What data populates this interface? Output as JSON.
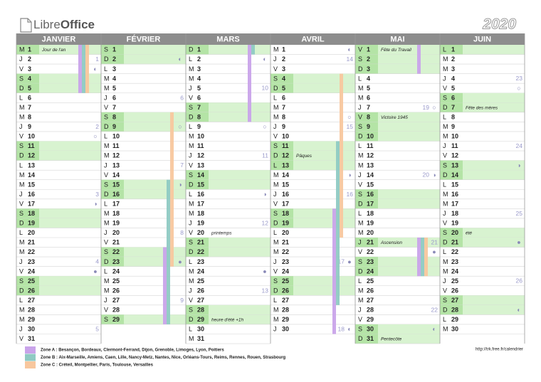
{
  "header": {
    "logo": [
      "Libre",
      "Office"
    ],
    "year": "2020"
  },
  "zones": [
    {
      "label": "Zone A : Besançon, Bordeaux, Clermont-Ferrand, Dijon, Grenoble, Limoges, Lyon, Poitiers",
      "color": "#c9a3ea"
    },
    {
      "label": "Zone B : Aix-Marseille, Amiens, Caen, Lille, Nancy-Metz, Nantes, Nice, Orléans-Tours, Reims, Rennes, Rouen, Strasbourg",
      "color": "#8fcac3"
    },
    {
      "label": "Zone C : Créteil, Montpellier, Paris, Toulouse, Versailles",
      "color": "#f8c79e"
    }
  ],
  "url": "http://trk.free.fr/calendrier",
  "months": [
    {
      "name": "JANVIER",
      "holidays": [
        {
          "zone": 0,
          "from": 1,
          "to": 5
        },
        {
          "zone": 1,
          "from": 1,
          "to": 5
        },
        {
          "zone": 2,
          "from": 1,
          "to": 5
        }
      ],
      "days": [
        {
          "l": "M",
          "n": 1,
          "g": true,
          "note": "Jour de l'an"
        },
        {
          "l": "J",
          "n": 2,
          "week": 1
        },
        {
          "l": "V",
          "n": 3,
          "moon": "◐"
        },
        {
          "l": "S",
          "n": 4,
          "g": true
        },
        {
          "l": "D",
          "n": 5,
          "g": true
        },
        {
          "l": "L",
          "n": 6
        },
        {
          "l": "M",
          "n": 7
        },
        {
          "l": "M",
          "n": 8
        },
        {
          "l": "J",
          "n": 9,
          "week": 2
        },
        {
          "l": "V",
          "n": 10,
          "moon": "○"
        },
        {
          "l": "S",
          "n": 11,
          "g": true
        },
        {
          "l": "D",
          "n": 12,
          "g": true
        },
        {
          "l": "L",
          "n": 13
        },
        {
          "l": "M",
          "n": 14
        },
        {
          "l": "M",
          "n": 15
        },
        {
          "l": "J",
          "n": 16,
          "week": 3
        },
        {
          "l": "V",
          "n": 17,
          "moon": "◑"
        },
        {
          "l": "S",
          "n": 18,
          "g": true
        },
        {
          "l": "D",
          "n": 19,
          "g": true
        },
        {
          "l": "L",
          "n": 20
        },
        {
          "l": "M",
          "n": 21
        },
        {
          "l": "M",
          "n": 22
        },
        {
          "l": "J",
          "n": 23,
          "week": 4
        },
        {
          "l": "V",
          "n": 24,
          "moon": "●"
        },
        {
          "l": "S",
          "n": 25,
          "g": true
        },
        {
          "l": "D",
          "n": 26,
          "g": true
        },
        {
          "l": "L",
          "n": 27
        },
        {
          "l": "M",
          "n": 28
        },
        {
          "l": "M",
          "n": 29
        },
        {
          "l": "J",
          "n": 30,
          "week": 5
        },
        {
          "l": "V",
          "n": 31
        }
      ]
    },
    {
      "name": "FÉVRIER",
      "holidays": [
        {
          "zone": 0,
          "from": 22,
          "to": 29
        },
        {
          "zone": 1,
          "from": 15,
          "to": 29
        },
        {
          "zone": 2,
          "from": 8,
          "to": 23
        }
      ],
      "days": [
        {
          "l": "S",
          "n": 1,
          "g": true
        },
        {
          "l": "D",
          "n": 2,
          "g": true,
          "moon": "◐"
        },
        {
          "l": "L",
          "n": 3
        },
        {
          "l": "M",
          "n": 4
        },
        {
          "l": "M",
          "n": 5
        },
        {
          "l": "J",
          "n": 6,
          "week": 6
        },
        {
          "l": "V",
          "n": 7
        },
        {
          "l": "S",
          "n": 8,
          "g": true
        },
        {
          "l": "D",
          "n": 9,
          "g": true,
          "moon": "○"
        },
        {
          "l": "L",
          "n": 10
        },
        {
          "l": "M",
          "n": 11
        },
        {
          "l": "M",
          "n": 12
        },
        {
          "l": "J",
          "n": 13,
          "week": 7
        },
        {
          "l": "V",
          "n": 14
        },
        {
          "l": "S",
          "n": 15,
          "g": true,
          "moon": "◑"
        },
        {
          "l": "D",
          "n": 16,
          "g": true
        },
        {
          "l": "L",
          "n": 17
        },
        {
          "l": "M",
          "n": 18
        },
        {
          "l": "M",
          "n": 19
        },
        {
          "l": "J",
          "n": 20,
          "week": 8
        },
        {
          "l": "V",
          "n": 21
        },
        {
          "l": "S",
          "n": 22,
          "g": true
        },
        {
          "l": "D",
          "n": 23,
          "g": true,
          "moon": "●"
        },
        {
          "l": "L",
          "n": 24
        },
        {
          "l": "M",
          "n": 25
        },
        {
          "l": "M",
          "n": 26
        },
        {
          "l": "J",
          "n": 27,
          "week": 9
        },
        {
          "l": "V",
          "n": 28
        },
        {
          "l": "S",
          "n": 29,
          "g": true
        }
      ]
    },
    {
      "name": "MARS",
      "holidays": [
        {
          "zone": 0,
          "from": 1,
          "to": 8
        },
        {
          "zone": 1,
          "from": 1,
          "to": 1
        }
      ],
      "days": [
        {
          "l": "D",
          "n": 1,
          "g": true
        },
        {
          "l": "L",
          "n": 2,
          "moon": "◐"
        },
        {
          "l": "M",
          "n": 3
        },
        {
          "l": "M",
          "n": 4
        },
        {
          "l": "J",
          "n": 5,
          "week": 10
        },
        {
          "l": "V",
          "n": 6
        },
        {
          "l": "S",
          "n": 7,
          "g": true
        },
        {
          "l": "D",
          "n": 8,
          "g": true
        },
        {
          "l": "L",
          "n": 9,
          "moon": "○"
        },
        {
          "l": "M",
          "n": 10
        },
        {
          "l": "M",
          "n": 11
        },
        {
          "l": "J",
          "n": 12,
          "week": 11
        },
        {
          "l": "V",
          "n": 13
        },
        {
          "l": "S",
          "n": 14,
          "g": true
        },
        {
          "l": "D",
          "n": 15,
          "g": true
        },
        {
          "l": "L",
          "n": 16,
          "moon": "◑"
        },
        {
          "l": "M",
          "n": 17
        },
        {
          "l": "M",
          "n": 18
        },
        {
          "l": "J",
          "n": 19,
          "week": 12
        },
        {
          "l": "V",
          "n": 20,
          "note": "printemps"
        },
        {
          "l": "S",
          "n": 21,
          "g": true
        },
        {
          "l": "D",
          "n": 22,
          "g": true
        },
        {
          "l": "L",
          "n": 23
        },
        {
          "l": "M",
          "n": 24,
          "moon": "●"
        },
        {
          "l": "M",
          "n": 25
        },
        {
          "l": "J",
          "n": 26,
          "week": 13
        },
        {
          "l": "V",
          "n": 27
        },
        {
          "l": "S",
          "n": 28,
          "g": true
        },
        {
          "l": "D",
          "n": 29,
          "g": true,
          "note": "heure d'été +1h"
        },
        {
          "l": "L",
          "n": 30
        },
        {
          "l": "M",
          "n": 31
        }
      ]
    },
    {
      "name": "AVRIL",
      "holidays": [
        {
          "zone": 0,
          "from": 18,
          "to": 30
        },
        {
          "zone": 1,
          "from": 11,
          "to": 27
        },
        {
          "zone": 2,
          "from": 4,
          "to": 20
        }
      ],
      "days": [
        {
          "l": "M",
          "n": 1,
          "moon": "◐"
        },
        {
          "l": "J",
          "n": 2,
          "week": 14
        },
        {
          "l": "V",
          "n": 3
        },
        {
          "l": "S",
          "n": 4,
          "g": true
        },
        {
          "l": "D",
          "n": 5,
          "g": true
        },
        {
          "l": "L",
          "n": 6
        },
        {
          "l": "M",
          "n": 7
        },
        {
          "l": "M",
          "n": 8,
          "moon": "○"
        },
        {
          "l": "J",
          "n": 9,
          "week": 15
        },
        {
          "l": "V",
          "n": 10
        },
        {
          "l": "S",
          "n": 11,
          "g": true
        },
        {
          "l": "D",
          "n": 12,
          "g": true,
          "note": "Pâques"
        },
        {
          "l": "L",
          "n": 13,
          "g": true
        },
        {
          "l": "M",
          "n": 14,
          "moon": "◑"
        },
        {
          "l": "M",
          "n": 15
        },
        {
          "l": "J",
          "n": 16,
          "week": 16
        },
        {
          "l": "V",
          "n": 17
        },
        {
          "l": "S",
          "n": 18,
          "g": true
        },
        {
          "l": "D",
          "n": 19,
          "g": true
        },
        {
          "l": "L",
          "n": 20
        },
        {
          "l": "M",
          "n": 21
        },
        {
          "l": "M",
          "n": 22
        },
        {
          "l": "J",
          "n": 23,
          "week": 17,
          "moon": "●"
        },
        {
          "l": "V",
          "n": 24
        },
        {
          "l": "S",
          "n": 25,
          "g": true
        },
        {
          "l": "D",
          "n": 26,
          "g": true
        },
        {
          "l": "L",
          "n": 27
        },
        {
          "l": "M",
          "n": 28
        },
        {
          "l": "M",
          "n": 29
        },
        {
          "l": "J",
          "n": 30,
          "week": 18,
          "moon": "◐"
        }
      ]
    },
    {
      "name": "MAI",
      "holidays": [
        {
          "zone": 0,
          "from": 1,
          "to": 3
        },
        {
          "zone": 0,
          "from": 21,
          "to": 24
        },
        {
          "zone": 1,
          "from": 21,
          "to": 24
        },
        {
          "zone": 2,
          "from": 21,
          "to": 24
        }
      ],
      "days": [
        {
          "l": "V",
          "n": 1,
          "g": true,
          "note": "Fête du Travail"
        },
        {
          "l": "S",
          "n": 2,
          "g": true
        },
        {
          "l": "D",
          "n": 3,
          "g": true
        },
        {
          "l": "L",
          "n": 4
        },
        {
          "l": "M",
          "n": 5
        },
        {
          "l": "M",
          "n": 6
        },
        {
          "l": "J",
          "n": 7,
          "week": 19,
          "moon": "○"
        },
        {
          "l": "V",
          "n": 8,
          "g": true,
          "note": "Victoire 1945"
        },
        {
          "l": "S",
          "n": 9,
          "g": true
        },
        {
          "l": "D",
          "n": 10,
          "g": true
        },
        {
          "l": "L",
          "n": 11
        },
        {
          "l": "M",
          "n": 12
        },
        {
          "l": "M",
          "n": 13
        },
        {
          "l": "J",
          "n": 14,
          "week": 20,
          "moon": "◑"
        },
        {
          "l": "V",
          "n": 15
        },
        {
          "l": "S",
          "n": 16,
          "g": true
        },
        {
          "l": "D",
          "n": 17,
          "g": true
        },
        {
          "l": "L",
          "n": 18
        },
        {
          "l": "M",
          "n": 19
        },
        {
          "l": "M",
          "n": 20
        },
        {
          "l": "J",
          "n": 21,
          "g": true,
          "week": 21,
          "note": "Ascension"
        },
        {
          "l": "V",
          "n": 22,
          "moon": "●"
        },
        {
          "l": "S",
          "n": 23,
          "g": true
        },
        {
          "l": "D",
          "n": 24,
          "g": true
        },
        {
          "l": "L",
          "n": 25
        },
        {
          "l": "M",
          "n": 26
        },
        {
          "l": "M",
          "n": 27
        },
        {
          "l": "J",
          "n": 28,
          "week": 22
        },
        {
          "l": "V",
          "n": 29
        },
        {
          "l": "S",
          "n": 30,
          "g": true,
          "moon": "◐"
        },
        {
          "l": "D",
          "n": 31,
          "g": true,
          "note": "Pentecôte"
        }
      ]
    },
    {
      "name": "JUIN",
      "holidays": [],
      "days": [
        {
          "l": "L",
          "n": 1,
          "g": true
        },
        {
          "l": "M",
          "n": 2
        },
        {
          "l": "M",
          "n": 3
        },
        {
          "l": "J",
          "n": 4,
          "week": 23
        },
        {
          "l": "V",
          "n": 5,
          "moon": "○"
        },
        {
          "l": "S",
          "n": 6,
          "g": true
        },
        {
          "l": "D",
          "n": 7,
          "g": true,
          "note": "Fête des mères"
        },
        {
          "l": "L",
          "n": 8
        },
        {
          "l": "M",
          "n": 9
        },
        {
          "l": "M",
          "n": 10
        },
        {
          "l": "J",
          "n": 11,
          "week": 24
        },
        {
          "l": "V",
          "n": 12
        },
        {
          "l": "S",
          "n": 13,
          "g": true,
          "moon": "◑"
        },
        {
          "l": "D",
          "n": 14,
          "g": true
        },
        {
          "l": "L",
          "n": 15
        },
        {
          "l": "M",
          "n": 16
        },
        {
          "l": "M",
          "n": 17
        },
        {
          "l": "J",
          "n": 18,
          "week": 25
        },
        {
          "l": "V",
          "n": 19
        },
        {
          "l": "S",
          "n": 20,
          "g": true,
          "note": "été"
        },
        {
          "l": "D",
          "n": 21,
          "g": true,
          "moon": "●"
        },
        {
          "l": "L",
          "n": 22
        },
        {
          "l": "M",
          "n": 23
        },
        {
          "l": "M",
          "n": 24
        },
        {
          "l": "J",
          "n": 25,
          "week": 26
        },
        {
          "l": "V",
          "n": 26
        },
        {
          "l": "S",
          "n": 27,
          "g": true
        },
        {
          "l": "D",
          "n": 28,
          "g": true,
          "moon": "◐"
        },
        {
          "l": "L",
          "n": 29
        },
        {
          "l": "M",
          "n": 30
        }
      ]
    }
  ]
}
